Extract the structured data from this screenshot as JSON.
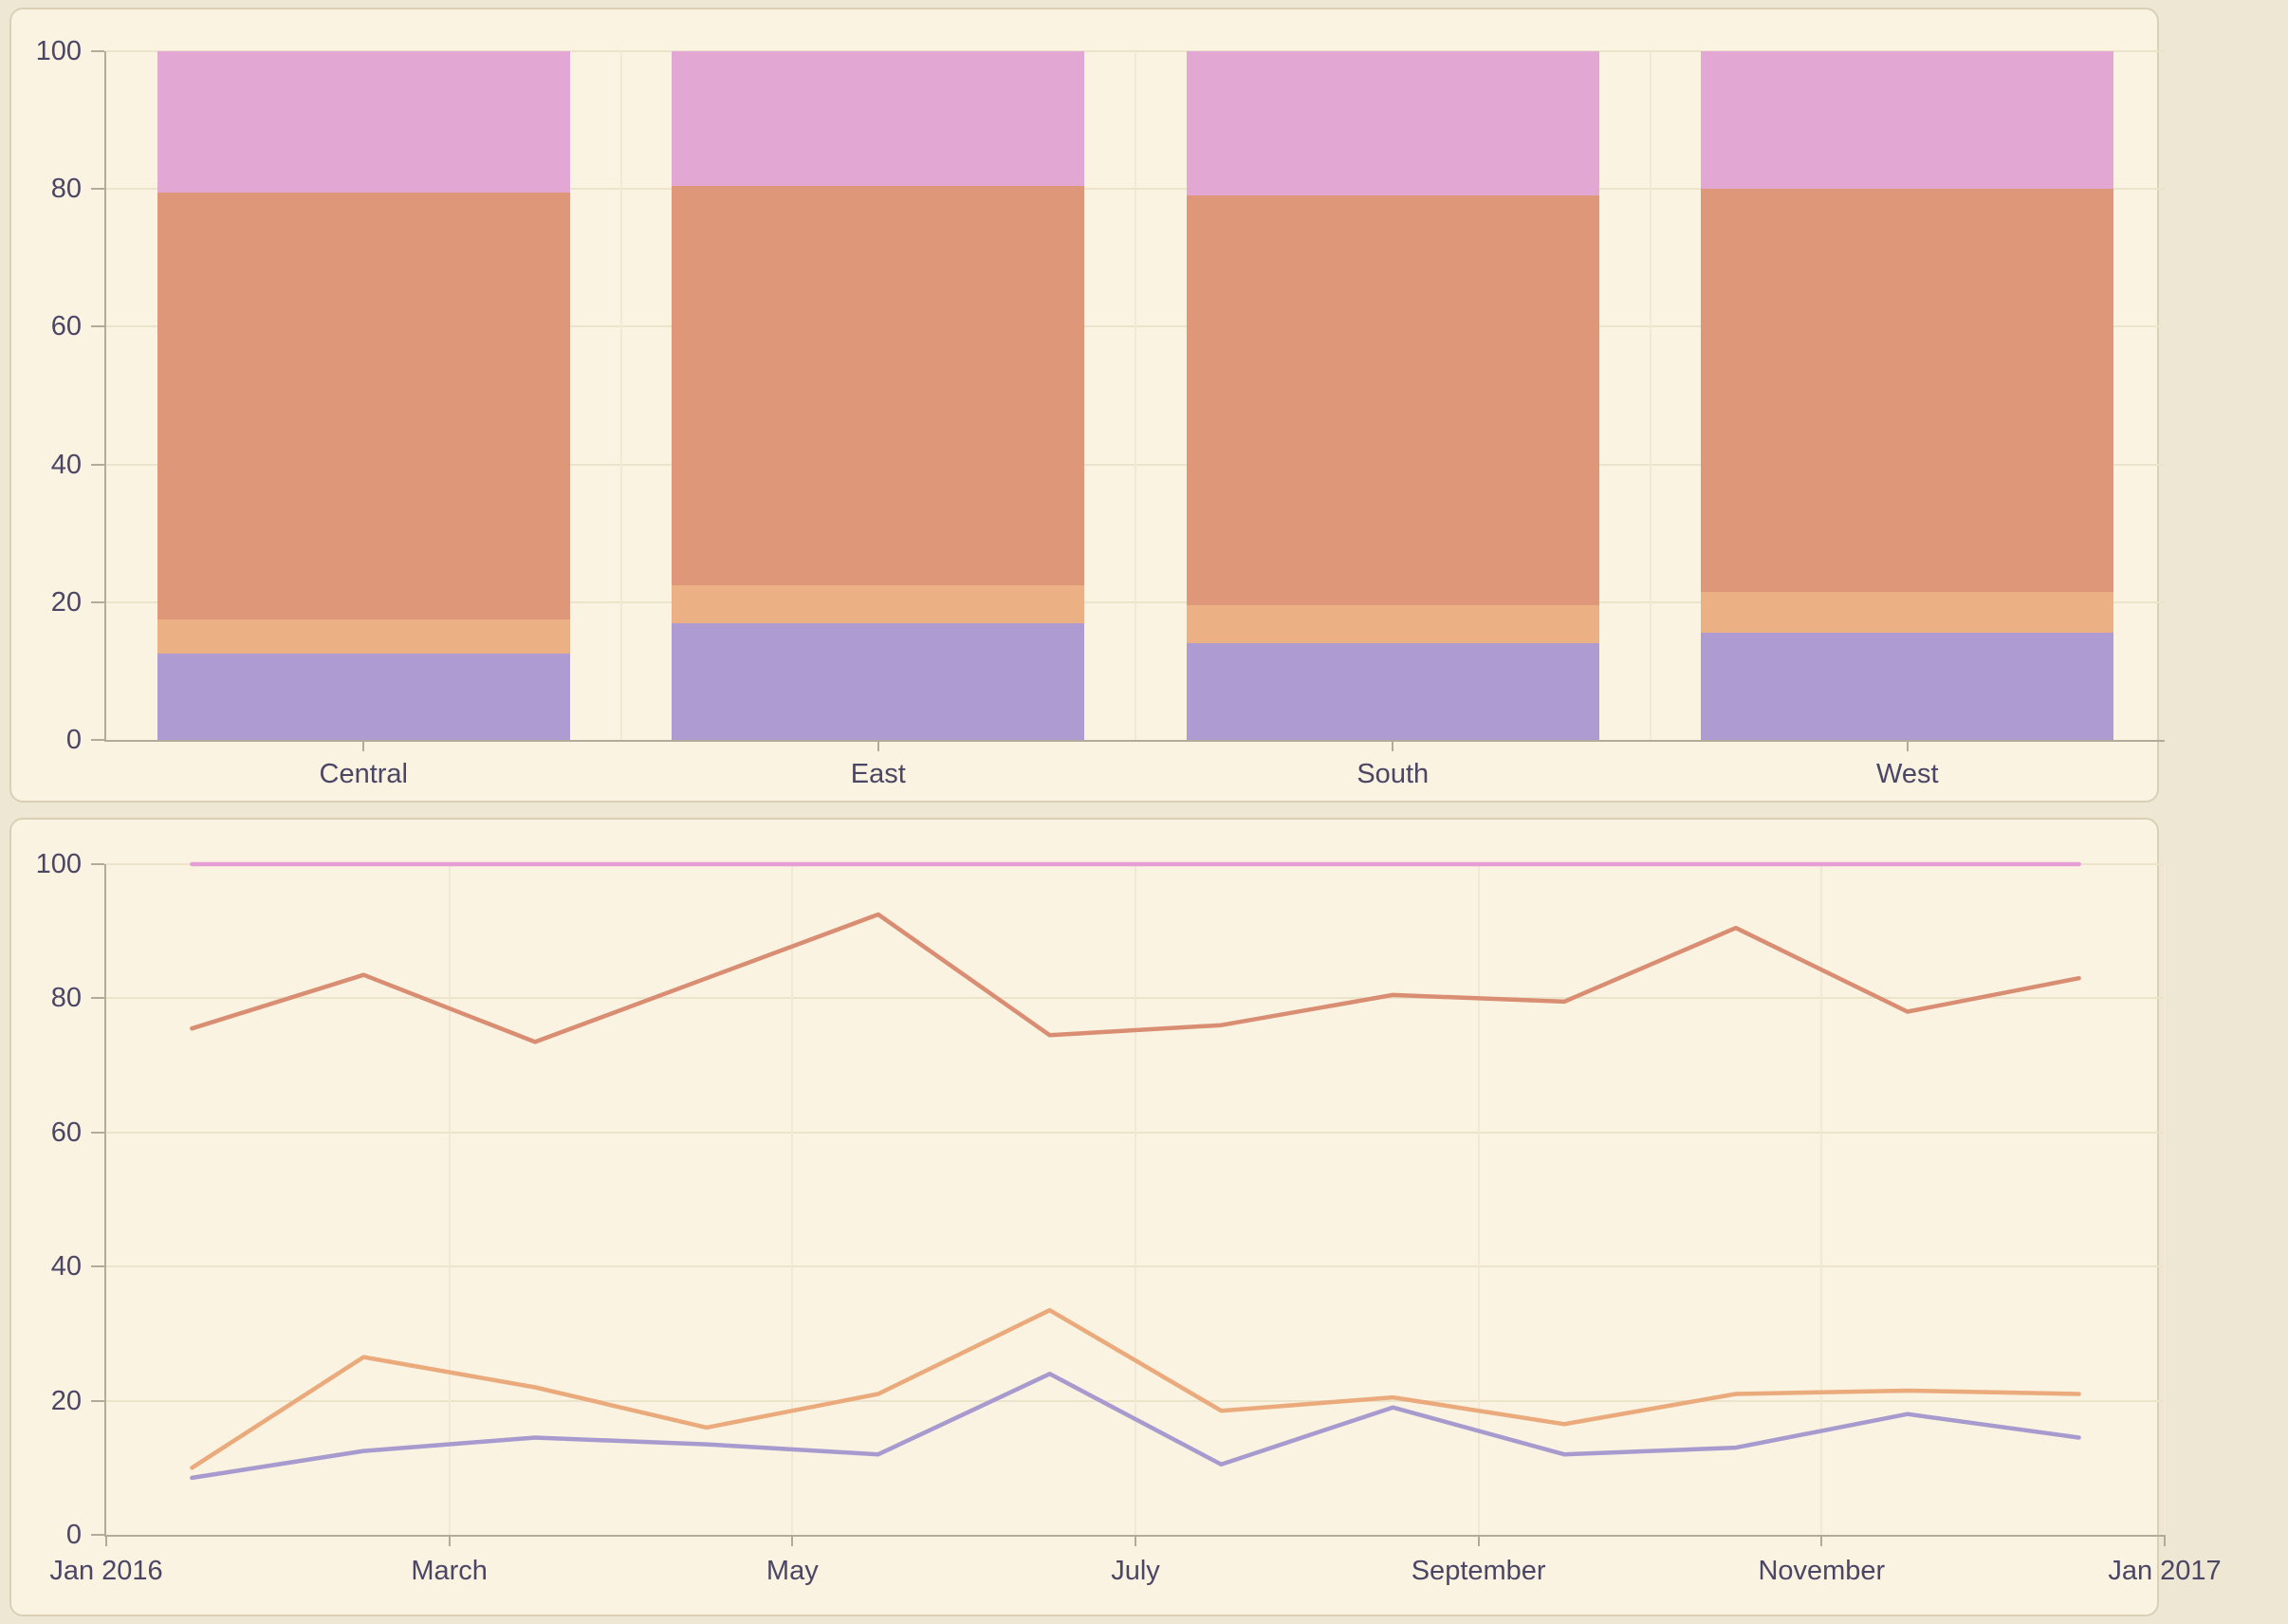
{
  "theme": {
    "page_background": "#eee7d3",
    "panel_background": "#faf3e1",
    "panel_border": "#d9d0b6",
    "grid_color": "#ece3cb",
    "axis_color": "#b3ab9a",
    "text_color": "#4b4665"
  },
  "chart_data": [
    {
      "type": "bar",
      "stacked": true,
      "normalized": true,
      "title": "",
      "categories": [
        "Central",
        "East",
        "South",
        "West"
      ],
      "series": [
        {
          "name": "purple-series",
          "color": "#ad9bd1",
          "values": [
            12.5,
            17,
            14,
            15.5
          ]
        },
        {
          "name": "light-orange-series",
          "color": "#ecb085",
          "values": [
            5,
            5.5,
            5.5,
            6
          ]
        },
        {
          "name": "salmon-series",
          "color": "#df977a",
          "values": [
            62,
            58,
            59.5,
            58.5
          ]
        },
        {
          "name": "pink-series",
          "color": "#e3a7d4",
          "values": [
            20.5,
            19.5,
            21,
            20
          ]
        }
      ],
      "ylim": [
        0,
        100
      ],
      "yticks": [
        0,
        20,
        40,
        60,
        80,
        100
      ],
      "y_tick_labels": [
        "0",
        "20",
        "40",
        "60",
        "80",
        "100"
      ],
      "grid": true,
      "legend": "none"
    },
    {
      "type": "line",
      "title": "",
      "x": [
        "Jan 2016",
        "Feb 2016",
        "Mar 2016",
        "Apr 2016",
        "May 2016",
        "Jun 2016",
        "Jul 2016",
        "Aug 2016",
        "Sep 2016",
        "Oct 2016",
        "Nov 2016",
        "Dec 2016"
      ],
      "x_axis_tick_labels": [
        "Jan 2016",
        "March",
        "May",
        "July",
        "September",
        "November",
        "Jan 2017"
      ],
      "series": [
        {
          "name": "pink-series",
          "color": "#e59fd5",
          "values": [
            100,
            100,
            100,
            100,
            100,
            100,
            100,
            100,
            100,
            100,
            100,
            100
          ]
        },
        {
          "name": "salmon-series",
          "color": "#d98d72",
          "values": [
            75.5,
            83.5,
            73.5,
            83,
            92.5,
            74.5,
            76,
            80.5,
            79.5,
            90.5,
            78,
            83
          ]
        },
        {
          "name": "light-orange-series",
          "color": "#eaaa7c",
          "values": [
            10,
            26.5,
            22,
            16,
            21,
            33.5,
            18.5,
            20.5,
            16.5,
            21,
            21.5,
            21
          ]
        },
        {
          "name": "purple-series",
          "color": "#a79ace",
          "values": [
            8.5,
            12.5,
            14.5,
            13.5,
            12,
            24,
            10.5,
            19,
            12,
            13,
            18,
            14.5
          ]
        }
      ],
      "ylim": [
        0,
        100
      ],
      "yticks": [
        0,
        20,
        40,
        60,
        80,
        100
      ],
      "y_tick_labels": [
        "0",
        "20",
        "40",
        "60",
        "80",
        "100"
      ],
      "grid": true,
      "legend": "none"
    }
  ]
}
